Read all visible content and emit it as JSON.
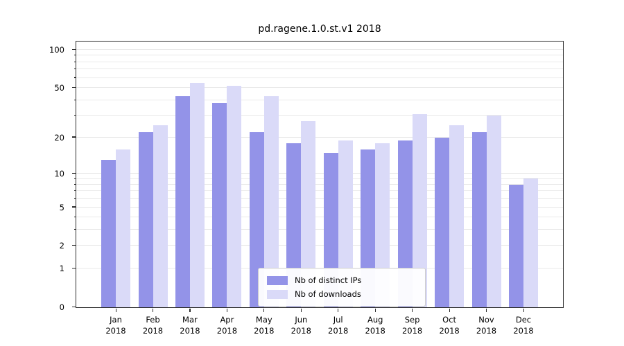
{
  "title": "pd.ragene.1.0.st.v1 2018",
  "chart_data": {
    "type": "bar",
    "title": "pd.ragene.1.0.st.v1 2018",
    "categories": [
      "Jan",
      "Feb",
      "Mar",
      "Apr",
      "May",
      "Jun",
      "Jul",
      "Aug",
      "Sep",
      "Oct",
      "Nov",
      "Dec"
    ],
    "year": "2018",
    "series": [
      {
        "name": "Nb of distinct IPs",
        "color": "#9393e8",
        "values": [
          13,
          22,
          43,
          38,
          22,
          18,
          15,
          16,
          19,
          20,
          22,
          8
        ]
      },
      {
        "name": "Nb of downloads",
        "color": "#dadaf8",
        "values": [
          16,
          25,
          55,
          52,
          43,
          27,
          19,
          18,
          31,
          25,
          30,
          9
        ]
      }
    ],
    "ylabel": "",
    "xlabel": "",
    "y_max": 100,
    "scale": "log1p",
    "y_ticks": [
      0,
      1,
      2,
      5,
      10,
      20,
      50,
      100
    ],
    "y_gridlines": [
      1,
      2,
      3,
      4,
      5,
      6,
      7,
      8,
      9,
      10,
      20,
      30,
      40,
      50,
      60,
      70,
      80,
      90,
      100
    ],
    "grid": "on",
    "legend_position": "bottom-center"
  }
}
